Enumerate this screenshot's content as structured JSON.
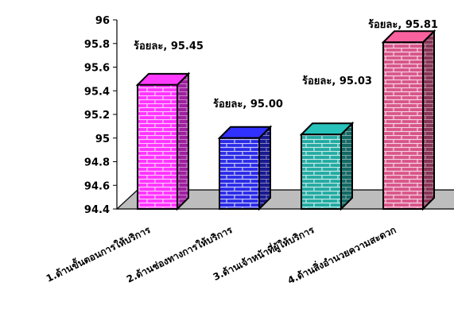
{
  "chart_data": {
    "type": "bar",
    "title": "",
    "xlabel": "",
    "ylabel": "",
    "ylim": [
      94.4,
      96
    ],
    "yticks": [
      "96",
      "95.8",
      "95.6",
      "95.4",
      "95.2",
      "95",
      "94.8",
      "94.6",
      "94.4"
    ],
    "yticks_values": [
      96,
      95.8,
      95.6,
      95.4,
      95.2,
      95,
      94.8,
      94.6,
      94.4
    ],
    "categories": [
      "1.ด้านขั้นตอนการให้บริการ",
      "2.ด้านช่องทางการให้บริการ",
      "3.ด้านเจ้าหน้าที่ผู้ให้บริการ",
      "4.ด้านสิ่งอำนวยความสะดวก"
    ],
    "values": [
      95.45,
      95.0,
      95.03,
      95.81
    ],
    "data_labels": [
      "ร้อยละ, 95.45",
      "ร้อยละ, 95.00",
      "ร้อยละ, 95.03",
      "ร้อยละ, 95.81"
    ],
    "colors": [
      "#ff33ff",
      "#2a2ae8",
      "#22aaa2",
      "#d9558a"
    ],
    "pattern": "brick",
    "grid": false,
    "legend": "none"
  }
}
